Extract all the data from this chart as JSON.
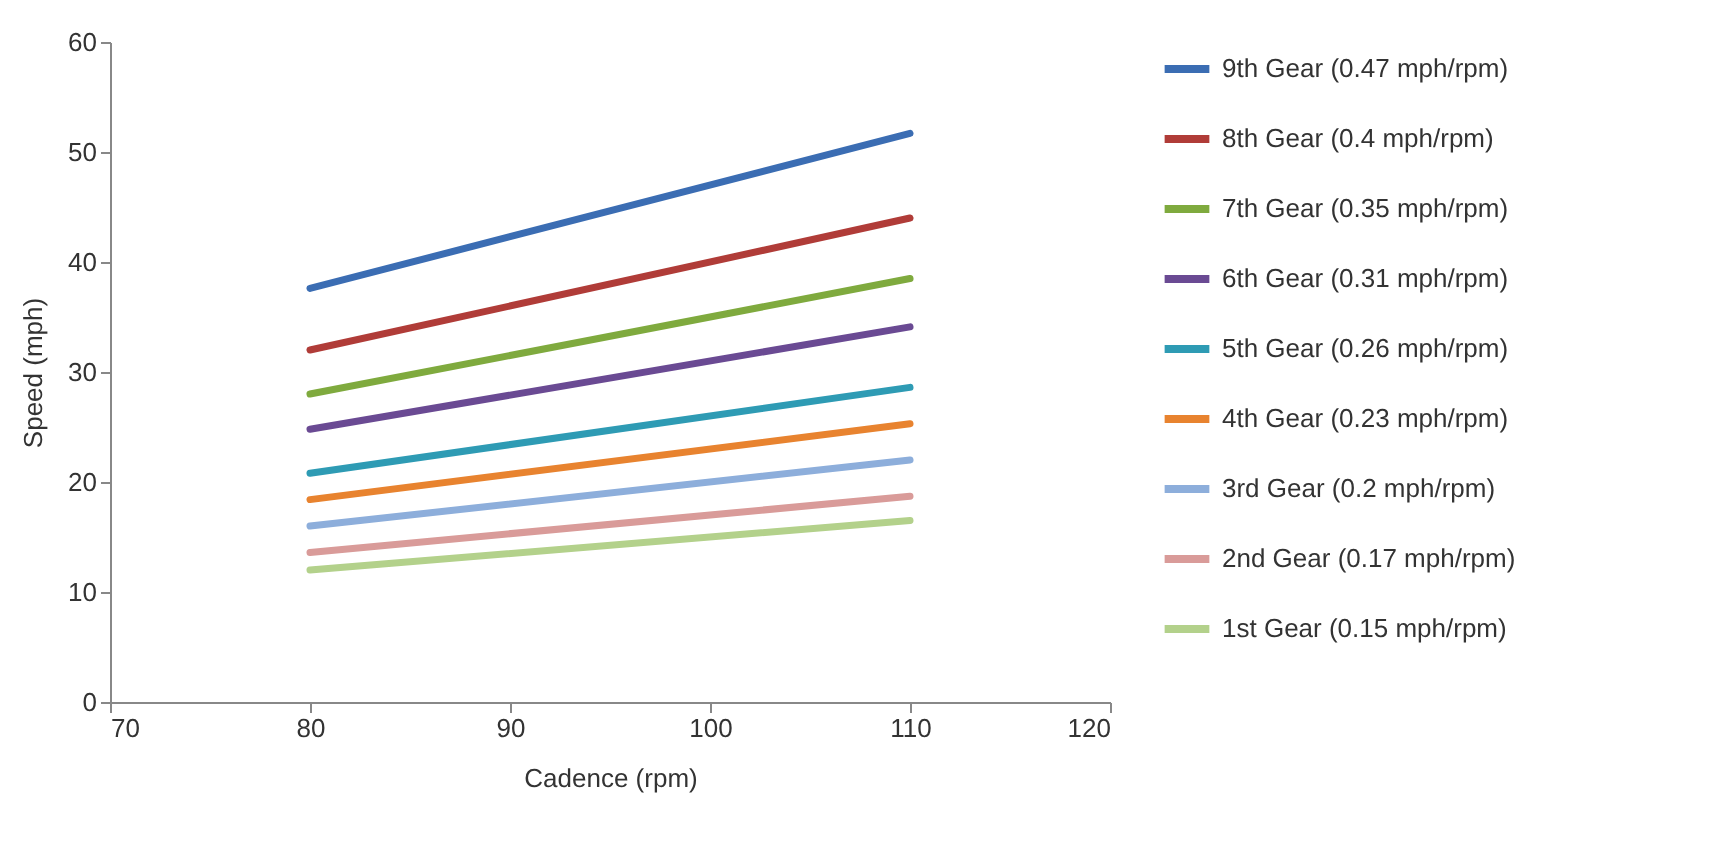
{
  "chart_data": {
    "type": "line",
    "xlabel": "Cadence (rpm)",
    "ylabel": "Speed (mph)",
    "x": [
      80,
      110
    ],
    "xlim": [
      70,
      120
    ],
    "xticks": [
      70,
      80,
      90,
      100,
      110,
      120
    ],
    "ylim": [
      0,
      60
    ],
    "yticks": [
      0,
      10,
      20,
      30,
      40,
      50,
      60
    ],
    "grid": false,
    "legend": "right",
    "marker": "none",
    "line_style": "solid",
    "series": [
      {
        "name": "9th Gear (0.47 mph/rpm)",
        "color": "#3b6db3",
        "values": [
          37.6,
          51.7
        ]
      },
      {
        "name": "8th Gear (0.4 mph/rpm)",
        "color": "#b03c38",
        "values": [
          32,
          44
        ]
      },
      {
        "name": "7th Gear (0.35 mph/rpm)",
        "color": "#7faa3e",
        "values": [
          28,
          38.5
        ]
      },
      {
        "name": "6th Gear (0.31 mph/rpm)",
        "color": "#6a4a93",
        "values": [
          24.8,
          34.1
        ]
      },
      {
        "name": "5th Gear (0.26 mph/rpm)",
        "color": "#2e9bb4",
        "values": [
          20.8,
          28.6
        ]
      },
      {
        "name": "4th Gear (0.23 mph/rpm)",
        "color": "#e8832f",
        "values": [
          18.4,
          25.3
        ]
      },
      {
        "name": "3rd Gear (0.2 mph/rpm)",
        "color": "#8daedb",
        "values": [
          16,
          22
        ]
      },
      {
        "name": "2nd Gear (0.17 mph/rpm)",
        "color": "#d99b99",
        "values": [
          13.6,
          18.7
        ]
      },
      {
        "name": "1st Gear (0.15 mph/rpm)",
        "color": "#b3d18b",
        "values": [
          12,
          16.5
        ]
      }
    ]
  }
}
